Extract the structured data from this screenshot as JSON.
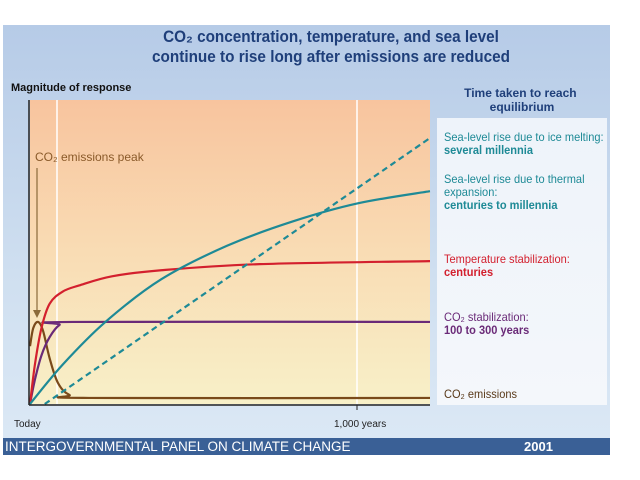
{
  "title_line1": "CO₂ concentration, temperature, and sea level",
  "title_line2": "continue to rise long after emissions are reduced",
  "footer": {
    "organization": "INTERGOVERNMENTAL PANEL ON CLIMATE CHANGE",
    "year": "2001"
  },
  "chart_data": {
    "type": "line",
    "ylabel": "Magnitude of response",
    "x_tick_labels": [
      "Today",
      "1,000  years"
    ],
    "x_ticks": [
      0,
      1000
    ],
    "xlim": [
      0,
      1220
    ],
    "ylim": [
      0,
      1
    ],
    "grid": false,
    "legend_title": "Time taken to reach equilibrium",
    "annotation": "CO₂ emissions peak",
    "series": [
      {
        "name": "CO₂ emissions",
        "time": "",
        "color": "#7a4a1a",
        "dashed": false,
        "points": [
          [
            0,
            0.19
          ],
          [
            10,
            0.25
          ],
          [
            25,
            0.27
          ],
          [
            40,
            0.24
          ],
          [
            60,
            0.15
          ],
          [
            85,
            0.07
          ],
          [
            120,
            0.03
          ],
          [
            180,
            0.02
          ],
          [
            1220,
            0.02
          ]
        ]
      },
      {
        "name": "CO₂ stabilization:",
        "time": "100 to 300 years",
        "color": "#6a2a78",
        "dashed": false,
        "points": [
          [
            0,
            0
          ],
          [
            15,
            0.08
          ],
          [
            35,
            0.16
          ],
          [
            60,
            0.22
          ],
          [
            90,
            0.26
          ],
          [
            130,
            0.27
          ],
          [
            1220,
            0.27
          ]
        ]
      },
      {
        "name": "Temperature stabilization:",
        "time": "centuries",
        "color": "#d3202e",
        "dashed": false,
        "points": [
          [
            0,
            0
          ],
          [
            15,
            0.13
          ],
          [
            35,
            0.25
          ],
          [
            60,
            0.33
          ],
          [
            100,
            0.37
          ],
          [
            150,
            0.39
          ],
          [
            250,
            0.42
          ],
          [
            400,
            0.44
          ],
          [
            700,
            0.46
          ],
          [
            1220,
            0.47
          ]
        ]
      },
      {
        "name": "Sea-level rise due to thermal expansion:",
        "time": "centuries to millennia",
        "color": "#1e8a96",
        "dashed": false,
        "points": [
          [
            0,
            0
          ],
          [
            100,
            0.13
          ],
          [
            230,
            0.27
          ],
          [
            400,
            0.41
          ],
          [
            600,
            0.52
          ],
          [
            800,
            0.6
          ],
          [
            1000,
            0.66
          ],
          [
            1220,
            0.7
          ]
        ]
      },
      {
        "name": "Sea-level rise due to ice melting:",
        "time": "several millennia",
        "color": "#1e8a96",
        "dashed": true,
        "points": [
          [
            45,
            0
          ],
          [
            1220,
            0.875
          ]
        ]
      }
    ]
  }
}
